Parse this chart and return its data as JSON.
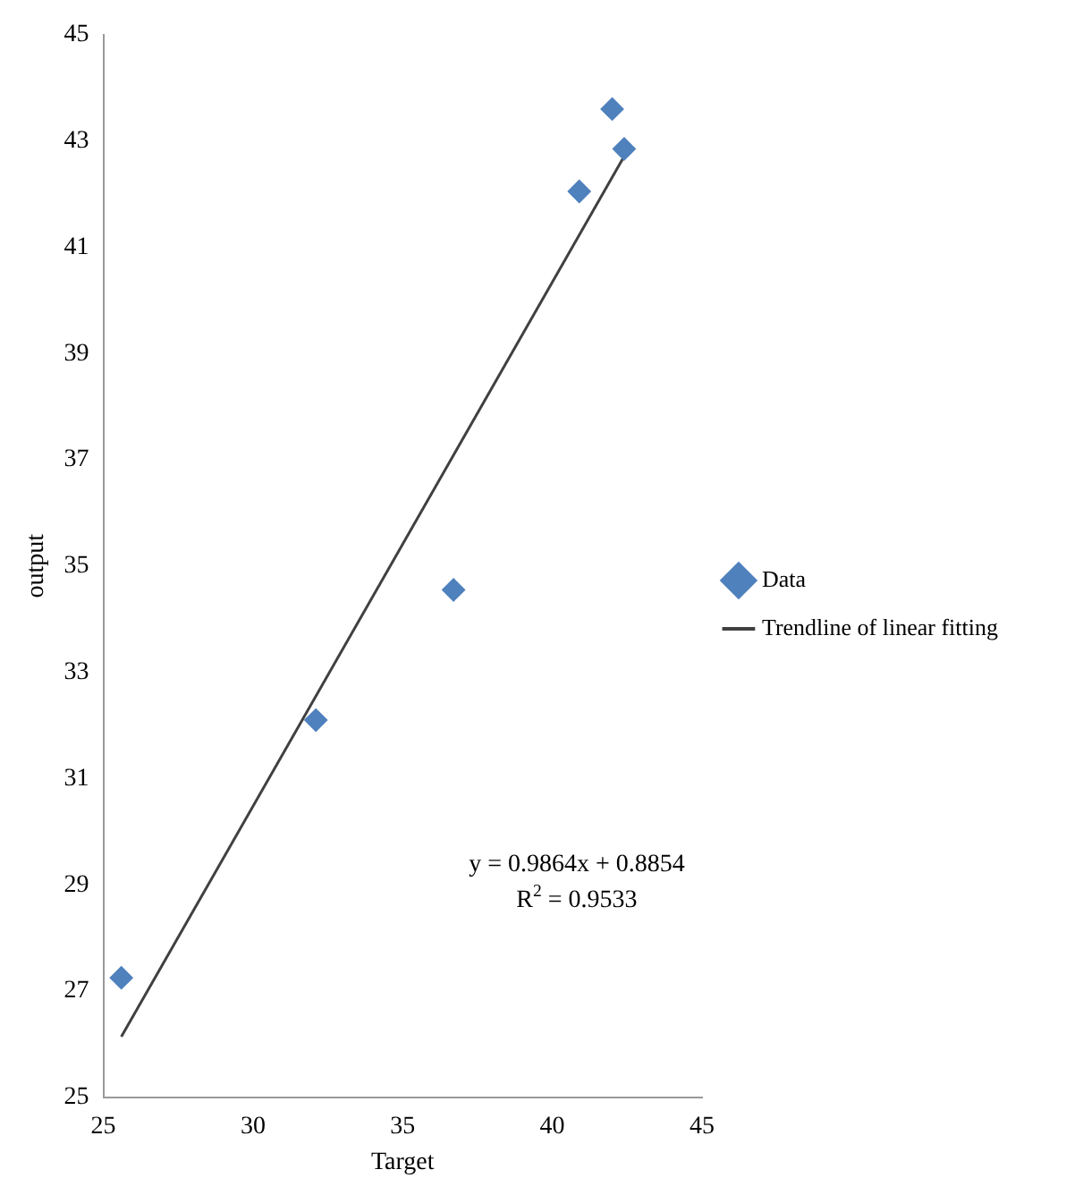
{
  "chart_data": {
    "type": "scatter",
    "xlabel": "Target",
    "ylabel": "output",
    "xlim": [
      25,
      45
    ],
    "xticks": [
      25,
      30,
      35,
      40,
      45
    ],
    "ylim": [
      25,
      45
    ],
    "yticks": [
      25,
      27,
      29,
      31,
      33,
      35,
      37,
      39,
      41,
      43,
      45
    ],
    "grid": false,
    "legend": "right",
    "marker": "diamond",
    "series": [
      {
        "name": "Data",
        "color": "#4f81bd",
        "x": [
          25.6,
          32.1,
          36.7,
          40.9,
          42.0,
          42.4
        ],
        "values": [
          27.25,
          32.1,
          34.55,
          42.05,
          43.6,
          42.85
        ]
      },
      {
        "name": "Trendline of linear fitting",
        "type": "line",
        "color": "#404040",
        "line_style": "solid",
        "marker": "none",
        "x": [
          25.6,
          42.4
        ],
        "values": [
          26.14,
          42.71
        ]
      }
    ],
    "annotations": [
      "y = 0.9864x + 0.8854",
      "R$^{2}$ = 0.9533"
    ]
  }
}
